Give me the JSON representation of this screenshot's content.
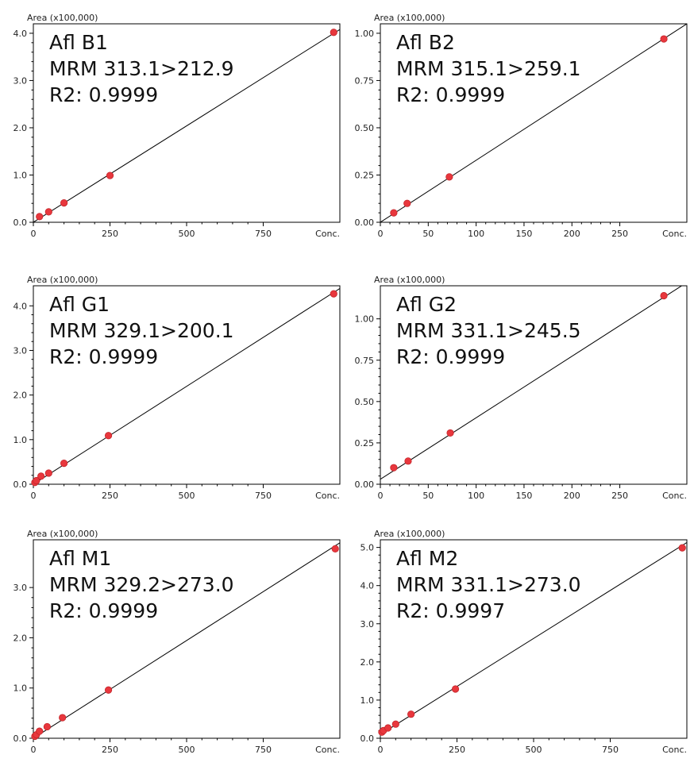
{
  "chart_data": [
    {
      "type": "scatter",
      "name_label": "Afl B1",
      "mrm_label": "MRM 313.1>212.9",
      "r2_label": "R2: 0.9999",
      "ylabel": "Area (x100,000)",
      "xlabel": "Conc.",
      "xlim": [
        0,
        1000
      ],
      "ylim": [
        0,
        4.2
      ],
      "xticks": [
        0,
        250,
        500,
        750
      ],
      "yticks": [
        0.0,
        1.0,
        2.0,
        3.0,
        4.0
      ],
      "ytick_labels": [
        "0.0",
        "1.0",
        "2.0",
        "3.0",
        "4.0"
      ],
      "fit": {
        "x": [
          0,
          1000
        ],
        "y": [
          0.0,
          4.08
        ]
      },
      "points": {
        "x": [
          20,
          50,
          100,
          250,
          980
        ],
        "y": [
          0.12,
          0.22,
          0.41,
          0.99,
          4.02
        ]
      }
    },
    {
      "type": "scatter",
      "name_label": "Afl B2",
      "mrm_label": "MRM 315.1>259.1",
      "r2_label": "R2: 0.9999",
      "ylabel": "Area (x100,000)",
      "xlabel": "Conc.",
      "xlim": [
        0,
        320
      ],
      "ylim": [
        0,
        1.05
      ],
      "xticks": [
        0,
        50,
        100,
        150,
        200,
        250
      ],
      "yticks": [
        0.0,
        0.25,
        0.5,
        0.75,
        1.0
      ],
      "ytick_labels": [
        "0.00",
        "0.25",
        "0.50",
        "0.75",
        "1.00"
      ],
      "fit": {
        "x": [
          0,
          320
        ],
        "y": [
          0.0,
          1.05
        ]
      },
      "points": {
        "x": [
          14,
          28,
          72,
          296
        ],
        "y": [
          0.05,
          0.1,
          0.24,
          0.97
        ]
      }
    },
    {
      "type": "scatter",
      "name_label": "Afl G1",
      "mrm_label": "MRM 329.1>200.1",
      "r2_label": "R2: 0.9999",
      "ylabel": "Area (x100,000)",
      "xlabel": "Conc.",
      "xlim": [
        0,
        1000
      ],
      "ylim": [
        0,
        4.45
      ],
      "xticks": [
        0,
        250,
        500,
        750
      ],
      "yticks": [
        0.0,
        1.0,
        2.0,
        3.0,
        4.0
      ],
      "ytick_labels": [
        "0.0",
        "1.0",
        "2.0",
        "3.0",
        "4.0"
      ],
      "fit": {
        "x": [
          0,
          1000
        ],
        "y": [
          0.0,
          4.39
        ]
      },
      "points": {
        "x": [
          5,
          10,
          25,
          50,
          100,
          245,
          980
        ],
        "y": [
          0.04,
          0.08,
          0.18,
          0.25,
          0.47,
          1.09,
          4.27
        ]
      }
    },
    {
      "type": "scatter",
      "name_label": "Afl G2",
      "mrm_label": "MRM 331.1>245.5",
      "r2_label": "R2: 0.9999",
      "ylabel": "Area (x100,000)",
      "xlabel": "Conc.",
      "xlim": [
        0,
        320
      ],
      "ylim": [
        0,
        1.2
      ],
      "xticks": [
        0,
        50,
        100,
        150,
        200,
        250
      ],
      "yticks": [
        0.0,
        0.25,
        0.5,
        0.75,
        1.0
      ],
      "ytick_labels": [
        "0.00",
        "0.25",
        "0.50",
        "0.75",
        "1.00"
      ],
      "fit": {
        "x": [
          0,
          320
        ],
        "y": [
          0.03,
          1.22
        ]
      },
      "points": {
        "x": [
          14,
          29,
          73,
          296
        ],
        "y": [
          0.1,
          0.14,
          0.31,
          1.14
        ]
      }
    },
    {
      "type": "scatter",
      "name_label": "Afl M1",
      "mrm_label": "MRM 329.2>273.0",
      "r2_label": "R2: 0.9999",
      "ylabel": "Area (x100,000)",
      "xlabel": "Conc.",
      "xlim": [
        0,
        1000
      ],
      "ylim": [
        0,
        3.95
      ],
      "xticks": [
        0,
        250,
        500,
        750
      ],
      "yticks": [
        0.0,
        1.0,
        2.0,
        3.0
      ],
      "ytick_labels": [
        "0.0",
        "1.0",
        "2.0",
        "3.0"
      ],
      "fit": {
        "x": [
          0,
          1000
        ],
        "y": [
          0.0,
          3.89
        ]
      },
      "points": {
        "x": [
          5,
          10,
          20,
          45,
          95,
          245,
          985
        ],
        "y": [
          0.04,
          0.07,
          0.14,
          0.23,
          0.41,
          0.96,
          3.77
        ]
      }
    },
    {
      "type": "scatter",
      "name_label": "Afl M2",
      "mrm_label": "MRM 331.1>273.0",
      "r2_label": "R2: 0.9997",
      "ylabel": "Area (x100,000)",
      "xlabel": "Conc.",
      "xlim": [
        0,
        1000
      ],
      "ylim": [
        0,
        5.2
      ],
      "xticks": [
        0,
        250,
        500,
        750
      ],
      "yticks": [
        0.0,
        1.0,
        2.0,
        3.0,
        4.0,
        5.0
      ],
      "ytick_labels": [
        "0.0",
        "1.0",
        "2.0",
        "3.0",
        "4.0",
        "5.0"
      ],
      "fit": {
        "x": [
          0,
          1000
        ],
        "y": [
          0.1,
          5.13
        ]
      },
      "points": {
        "x": [
          5,
          10,
          25,
          50,
          100,
          245,
          985
        ],
        "y": [
          0.16,
          0.2,
          0.27,
          0.37,
          0.63,
          1.29,
          4.99
        ]
      }
    }
  ]
}
